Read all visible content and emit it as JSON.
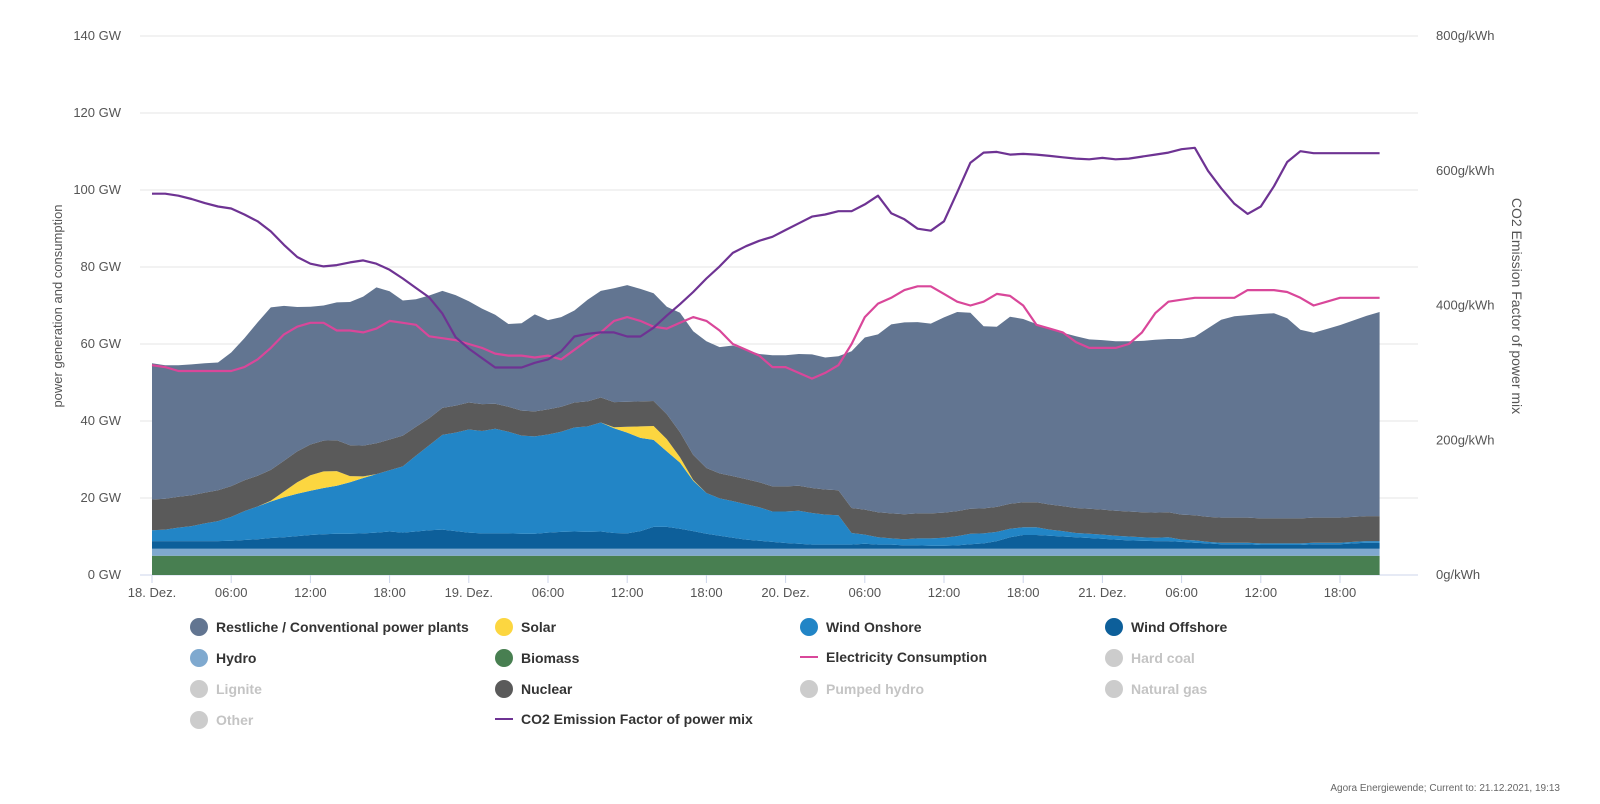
{
  "chart_data": {
    "type": "area",
    "ylabel": "power generation and consumption",
    "y2label": "CO2 Emission Factor of power mix",
    "ylim": [
      0,
      140
    ],
    "y2lim": [
      0,
      800
    ],
    "y_ticks": [
      "0 GW",
      "20 GW",
      "40 GW",
      "60 GW",
      "80 GW",
      "100 GW",
      "120 GW",
      "140 GW"
    ],
    "y2_ticks": [
      "0g/kWh",
      "200g/kWh",
      "400g/kWh",
      "600g/kWh",
      "800g/kWh"
    ],
    "x_ticks": [
      "18. Dez.",
      "06:00",
      "12:00",
      "18:00",
      "19. Dez.",
      "06:00",
      "12:00",
      "18:00",
      "20. Dez.",
      "06:00",
      "12:00",
      "18:00",
      "21. Dez.",
      "06:00",
      "12:00",
      "18:00"
    ],
    "x_start": "18.12.2021 00:00",
    "x_step_hours": 1,
    "grid": true,
    "legend_position": "bottom",
    "stack_order": [
      "Biomass",
      "Hydro",
      "Wind Offshore",
      "Wind Onshore",
      "Solar",
      "Nuclear",
      "Restliche / Conventional power plants"
    ],
    "series": [
      {
        "name": "Biomass",
        "color": "#487f51",
        "axis": "left",
        "values": [
          5,
          5,
          5,
          5,
          5,
          5,
          5,
          5,
          5,
          5,
          5,
          5,
          5,
          5,
          5,
          5,
          5,
          5,
          5,
          5,
          5,
          5,
          5,
          5,
          5,
          5,
          5,
          5,
          5,
          5,
          5,
          5,
          5,
          5,
          5,
          5,
          5,
          5,
          5,
          5,
          5,
          5,
          5,
          5,
          5,
          5,
          5,
          5,
          5,
          5,
          5,
          5,
          5,
          5,
          5,
          5,
          5,
          5,
          5,
          5,
          5,
          5,
          5,
          5,
          5,
          5,
          5,
          5,
          5,
          5,
          5,
          5,
          5,
          5,
          5,
          5,
          5,
          5,
          5,
          5,
          5,
          5,
          5,
          5,
          5,
          5,
          5,
          5,
          5,
          5,
          5,
          5,
          5,
          5
        ]
      },
      {
        "name": "Hydro",
        "color": "#7fa9cf",
        "axis": "left",
        "values": [
          1.8,
          1.8,
          1.8,
          1.8,
          1.8,
          1.8,
          1.8,
          1.8,
          1.8,
          1.8,
          1.8,
          1.8,
          1.8,
          1.8,
          1.8,
          1.8,
          1.8,
          1.8,
          1.8,
          1.8,
          1.8,
          1.8,
          1.8,
          1.8,
          1.8,
          1.8,
          1.8,
          1.8,
          1.8,
          1.8,
          1.8,
          1.8,
          1.8,
          1.8,
          1.8,
          1.8,
          1.8,
          1.8,
          1.8,
          1.8,
          1.8,
          1.8,
          1.8,
          1.8,
          1.8,
          1.8,
          1.8,
          1.8,
          1.8,
          1.8,
          1.8,
          1.8,
          1.8,
          1.8,
          1.8,
          1.8,
          1.8,
          1.8,
          1.8,
          1.8,
          1.8,
          1.8,
          1.8,
          1.8,
          1.8,
          1.8,
          1.8,
          1.8,
          1.8,
          1.8,
          1.8,
          1.8,
          1.8,
          1.8,
          1.8,
          1.8,
          1.8,
          1.8,
          1.8,
          1.8,
          1.8,
          1.8,
          1.8,
          1.8,
          1.8,
          1.8,
          1.8,
          1.8,
          1.8,
          1.8,
          1.8,
          1.8,
          1.8,
          1.8
        ]
      },
      {
        "name": "Wind Offshore",
        "color": "#0d5f9a",
        "axis": "left",
        "values": [
          2.0,
          2.0,
          2.0,
          2.0,
          2.0,
          2.0,
          2.1,
          2.3,
          2.5,
          2.8,
          3.0,
          3.3,
          3.6,
          3.8,
          3.9,
          3.9,
          4.0,
          4.2,
          4.5,
          4.2,
          4.5,
          4.8,
          5.0,
          4.6,
          4.2,
          4.0,
          4.0,
          4.0,
          3.9,
          3.9,
          4.2,
          4.4,
          4.5,
          4.4,
          4.5,
          4.1,
          4.0,
          4.6,
          5.7,
          5.7,
          5.2,
          4.6,
          3.9,
          3.4,
          2.9,
          2.4,
          2.1,
          1.8,
          1.5,
          1.3,
          1.1,
          1.1,
          1.1,
          1.1,
          1.3,
          1.1,
          1.1,
          0.9,
          0.9,
          0.8,
          0.8,
          0.9,
          1.2,
          1.4,
          2.0,
          3.0,
          3.6,
          3.6,
          3.4,
          3.2,
          3.0,
          2.8,
          2.6,
          2.4,
          2.2,
          2.1,
          2.0,
          2.0,
          1.8,
          1.6,
          1.4,
          1.2,
          1.2,
          1.2,
          1.0,
          1.0,
          1.0,
          1.0,
          1.2,
          1.2,
          1.2,
          1.4,
          1.6,
          1.6
        ]
      },
      {
        "name": "Wind Onshore",
        "color": "#2285c6",
        "axis": "left",
        "values": [
          2.8,
          3.0,
          3.5,
          3.9,
          4.6,
          5.2,
          6.2,
          7.5,
          8.5,
          9.5,
          10.4,
          11.0,
          11.5,
          12.0,
          12.5,
          13.4,
          14.4,
          15.2,
          15.9,
          17.2,
          19.7,
          22.1,
          24.6,
          25.6,
          26.8,
          26.6,
          27.2,
          26.4,
          25.5,
          25.3,
          25.5,
          26.0,
          27.0,
          27.4,
          28.3,
          27.2,
          26.2,
          24.2,
          22.6,
          19.6,
          17.2,
          13.1,
          10.6,
          9.7,
          9.5,
          9.2,
          8.7,
          7.9,
          8.2,
          8.6,
          8.2,
          7.8,
          7.6,
          3.0,
          2.4,
          1.9,
          1.6,
          1.6,
          1.8,
          1.9,
          2.1,
          2.4,
          2.7,
          2.6,
          2.4,
          2.2,
          2.0,
          2.0,
          1.6,
          1.4,
          1.1,
          1.1,
          1.1,
          1.0,
          1.0,
          0.9,
          0.9,
          1.0,
          0.6,
          0.6,
          0.4,
          0.4,
          0.4,
          0.4,
          0.4,
          0.4,
          0.4,
          0.4,
          0.4,
          0.4,
          0.4,
          0.4,
          0.4,
          0.4
        ]
      },
      {
        "name": "Solar",
        "color": "#fcd640",
        "axis": "left",
        "values": [
          0,
          0,
          0,
          0,
          0,
          0,
          0,
          0,
          0,
          0.2,
          1.5,
          3.0,
          4.0,
          4.3,
          3.8,
          1.6,
          0.4,
          0,
          0,
          0,
          0,
          0,
          0,
          0,
          0,
          0,
          0,
          0,
          0,
          0,
          0,
          0,
          0,
          0,
          0,
          0.3,
          1.5,
          3.0,
          3.6,
          3.2,
          1.4,
          0.2,
          0,
          0,
          0,
          0,
          0,
          0,
          0,
          0,
          0,
          0,
          0,
          0,
          0,
          0,
          0,
          0,
          0,
          0,
          0,
          0,
          0,
          0,
          0,
          0,
          0,
          0,
          0,
          0,
          0,
          0,
          0,
          0,
          0,
          0,
          0,
          0,
          0,
          0,
          0,
          0,
          0,
          0,
          0,
          0,
          0,
          0,
          0,
          0,
          0,
          0,
          0,
          0
        ]
      },
      {
        "name": "Nuclear",
        "color": "#5a5a5a",
        "axis": "left",
        "values": [
          8.0,
          8.0,
          8.0,
          8.0,
          8.0,
          8.0,
          8.0,
          8.0,
          8.0,
          8.0,
          8.0,
          8.0,
          8.0,
          8.0,
          8.0,
          8.0,
          8.0,
          8.0,
          8.0,
          8.0,
          7.5,
          7.0,
          7.0,
          7.0,
          7.0,
          7.0,
          6.5,
          6.5,
          6.5,
          6.5,
          6.5,
          6.5,
          6.5,
          6.5,
          6.5,
          6.5,
          6.5,
          6.5,
          6.5,
          6.5,
          6.5,
          6.5,
          6.5,
          6.5,
          6.5,
          6.5,
          6.5,
          6.5,
          6.5,
          6.5,
          6.5,
          6.5,
          6.5,
          6.5,
          6.5,
          6.5,
          6.5,
          6.5,
          6.5,
          6.5,
          6.5,
          6.5,
          6.5,
          6.5,
          6.5,
          6.5,
          6.5,
          6.5,
          6.5,
          6.5,
          6.5,
          6.5,
          6.5,
          6.5,
          6.5,
          6.5,
          6.5,
          6.5,
          6.5,
          6.5,
          6.5,
          6.5,
          6.5,
          6.5,
          6.5,
          6.5,
          6.5,
          6.5,
          6.5,
          6.5,
          6.5,
          6.5,
          6.5,
          6.5
        ]
      },
      {
        "name": "Restliche / Conventional power plants",
        "color": "#627591",
        "axis": "left",
        "values": [
          35.4,
          34.7,
          34.2,
          34.0,
          33.6,
          33.2,
          34.7,
          36.9,
          39.8,
          42.2,
          40.2,
          37.5,
          35.8,
          35.1,
          35.8,
          37.2,
          38.7,
          40.5,
          38.5,
          35.1,
          33.1,
          31.9,
          30.4,
          28.7,
          26.3,
          24.8,
          23.1,
          21.5,
          22.7,
          25.2,
          23.2,
          23.3,
          23.9,
          26.4,
          27.7,
          29.6,
          30.3,
          29.2,
          28.0,
          27.9,
          31.0,
          32.1,
          32.9,
          32.8,
          33.9,
          33.6,
          33.3,
          34.1,
          34.1,
          34.2,
          34.7,
          34.3,
          34.8,
          40.7,
          44.7,
          46.2,
          49.1,
          49.8,
          49.7,
          49.3,
          50.7,
          51.7,
          50.9,
          47.3,
          46.8,
          48.6,
          47.6,
          46.3,
          45.5,
          45.0,
          44.6,
          44.0,
          44.0,
          44.0,
          44.2,
          44.5,
          44.9,
          45.0,
          45.6,
          46.4,
          49.0,
          51.4,
          52.3,
          52.6,
          53.1,
          53.3,
          52.0,
          49.0,
          48.0,
          49.0,
          50.0,
          51.0,
          52.0,
          53.0
        ]
      },
      {
        "name": "Electricity Consumption",
        "color": "#d9479a",
        "axis": "left",
        "type": "line",
        "values": [
          54.5,
          54.0,
          53.0,
          53.0,
          53.0,
          53.0,
          53.0,
          54.0,
          56.0,
          59.0,
          62.5,
          64.5,
          65.5,
          65.5,
          63.5,
          63.5,
          63.0,
          64.0,
          66.0,
          65.5,
          65.0,
          62.0,
          61.5,
          61.0,
          60.0,
          59.0,
          57.5,
          57.0,
          57.0,
          56.5,
          57.0,
          56.0,
          58.5,
          61.0,
          63.0,
          66.0,
          67.0,
          66.0,
          64.5,
          64.0,
          65.5,
          67.0,
          66.0,
          63.5,
          60.0,
          58.5,
          57.0,
          54.0,
          54.0,
          52.5,
          51.0,
          52.5,
          54.5,
          60.0,
          67.0,
          70.5,
          72.0,
          74.0,
          75.0,
          75.0,
          73.0,
          71.0,
          70.0,
          71.0,
          73.0,
          72.5,
          70.0,
          65.0,
          64.0,
          63.0,
          60.5,
          59.0,
          59.0,
          59.0,
          60.0,
          63.0,
          68.0,
          71.0,
          71.5,
          72.0,
          72.0,
          72.0,
          72.0,
          74.0,
          74.0,
          74.0,
          73.5,
          72.0,
          70.0,
          71.0,
          72.0,
          72.0,
          72.0,
          72.0
        ]
      },
      {
        "name": "CO2 Emission Factor of power mix",
        "color": "#6e3393",
        "axis": "right",
        "type": "line",
        "values": [
          566,
          566,
          563,
          558,
          552,
          547,
          544,
          535,
          525,
          510,
          490,
          472,
          462,
          458,
          460,
          464,
          467,
          462,
          453,
          440,
          426,
          412,
          388,
          353,
          336,
          322,
          308,
          308,
          308,
          315,
          320,
          332,
          354,
          358,
          360,
          360,
          354,
          354,
          367,
          385,
          402,
          420,
          440,
          458,
          478,
          488,
          496,
          502,
          512,
          522,
          532,
          535,
          540,
          540,
          550,
          563,
          537,
          528,
          514,
          511,
          525,
          568,
          612,
          627,
          628,
          624,
          625,
          624,
          622,
          620,
          618,
          617,
          619,
          617,
          618,
          621,
          624,
          627,
          632,
          634,
          600,
          574,
          551,
          536,
          547,
          577,
          613,
          629,
          626,
          626,
          626,
          626,
          626,
          626
        ]
      }
    ],
    "legend": [
      {
        "label": "Restliche / Conventional power plants",
        "color": "#627591",
        "marker": "dot",
        "active": true
      },
      {
        "label": "Solar",
        "color": "#fcd640",
        "marker": "dot",
        "active": true
      },
      {
        "label": "Wind Onshore",
        "color": "#2285c6",
        "marker": "dot",
        "active": true
      },
      {
        "label": "Wind Offshore",
        "color": "#0d5f9a",
        "marker": "dot",
        "active": true
      },
      {
        "label": "Hydro",
        "color": "#7fa9cf",
        "marker": "dot",
        "active": true
      },
      {
        "label": "Biomass",
        "color": "#487f51",
        "marker": "dot",
        "active": true
      },
      {
        "label": "Electricity Consumption",
        "color": "#d9479a",
        "marker": "line",
        "active": true
      },
      {
        "label": "Hard coal",
        "color": "#cccccc",
        "marker": "dot",
        "active": false
      },
      {
        "label": "Lignite",
        "color": "#cccccc",
        "marker": "dot",
        "active": false
      },
      {
        "label": "Nuclear",
        "color": "#5a5a5a",
        "marker": "dot",
        "active": true
      },
      {
        "label": "Pumped hydro",
        "color": "#cccccc",
        "marker": "dot",
        "active": false
      },
      {
        "label": "Natural gas",
        "color": "#cccccc",
        "marker": "dot",
        "active": false
      },
      {
        "label": "Other",
        "color": "#cccccc",
        "marker": "dot",
        "active": false
      },
      {
        "label": "CO2 Emission Factor of power mix",
        "color": "#6e3393",
        "marker": "line",
        "active": true
      }
    ]
  },
  "footer": {
    "credit": "Agora Energiewende; Current to: 21.12.2021, 19:13"
  }
}
